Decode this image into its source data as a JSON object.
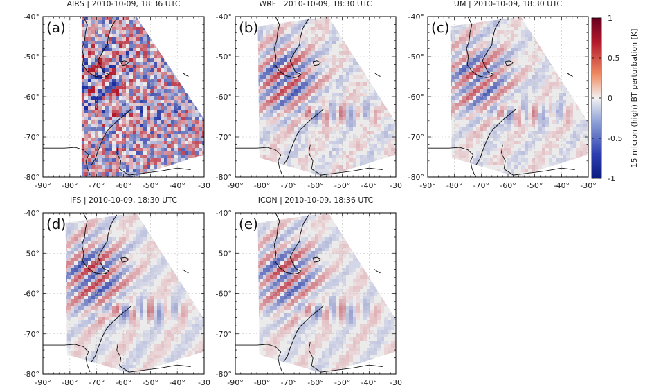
{
  "chart_data": [
    {
      "type": "heatmap",
      "panel_label": "(a)",
      "title": "AIRS | 2010-10-09, 18:36 UTC",
      "xlim": [
        -90,
        -30
      ],
      "ylim": [
        -80,
        -40
      ],
      "xticks": [
        "-90°",
        "-80°",
        "-70°",
        "-60°",
        "-50°",
        "-40°",
        "-30"
      ],
      "yticks": [
        "-40°",
        "-50°",
        "-60°",
        "-70°",
        "-80°"
      ],
      "noise_level": 0.85,
      "wave_strength": 0.9
    },
    {
      "type": "heatmap",
      "panel_label": "(b)",
      "title": "WRF | 2010-10-09, 18:30 UTC",
      "xlim": [
        -90,
        -30
      ],
      "ylim": [
        -80,
        -40
      ],
      "xticks": [
        "-90°",
        "-80°",
        "-70°",
        "-60°",
        "-50°",
        "-40°",
        "-30"
      ],
      "yticks": [
        "-40°",
        "-50°",
        "-60°",
        "-70°",
        "-80°"
      ],
      "noise_level": 0.1,
      "wave_strength": 0.8
    },
    {
      "type": "heatmap",
      "panel_label": "(c)",
      "title": "UM | 2010-10-09, 18:30 UTC",
      "xlim": [
        -90,
        -30
      ],
      "ylim": [
        -80,
        -40
      ],
      "xticks": [
        "-90°",
        "-80°",
        "-70°",
        "-60°",
        "-50°",
        "-40°",
        "-30°"
      ],
      "yticks": [
        "-40°",
        "-50°",
        "-60°",
        "-70°",
        "-80°"
      ],
      "noise_level": 0.08,
      "wave_strength": 0.7
    },
    {
      "type": "heatmap",
      "panel_label": "(d)",
      "title": "IFS | 2010-10-09, 18:30 UTC",
      "xlim": [
        -90,
        -30
      ],
      "ylim": [
        -80,
        -40
      ],
      "xticks": [
        "-90°",
        "-80°",
        "-70°",
        "-60°",
        "-50°",
        "-40°",
        "-30"
      ],
      "yticks": [
        "-40°",
        "-50°",
        "-60°",
        "-70°",
        "-80°"
      ],
      "noise_level": 0.05,
      "wave_strength": 0.85
    },
    {
      "type": "heatmap",
      "panel_label": "(e)",
      "title": "ICON | 2010-10-09, 18:36 UTC",
      "xlim": [
        -90,
        -30
      ],
      "ylim": [
        -80,
        -40
      ],
      "xticks": [
        "-90°",
        "-80°",
        "-70°",
        "-60°",
        "-50°",
        "-40°",
        "-30"
      ],
      "yticks": [
        "-40°",
        "-50°",
        "-60°",
        "-70°",
        "-80°"
      ],
      "noise_level": 0.05,
      "wave_strength": 0.75
    }
  ],
  "colorbar": {
    "label": "15 micron (high) BT perturbation [K]",
    "ticks": [
      "1",
      "0.5",
      "0",
      "-0.5",
      "-1"
    ],
    "range": [
      -1,
      1
    ],
    "colors": {
      "max": "#b2182b",
      "mid": "#f2f2f2",
      "min": "#1c2ea0"
    }
  }
}
